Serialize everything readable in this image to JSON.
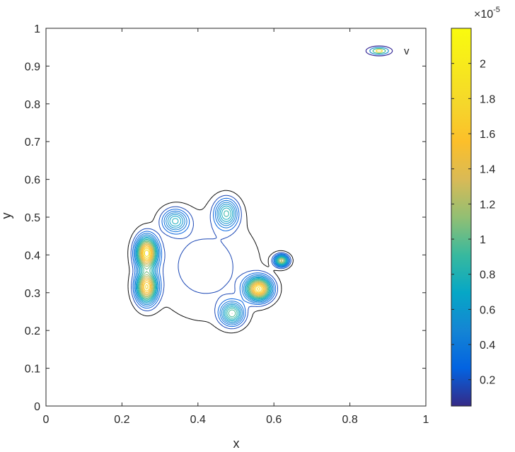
{
  "chart_data": {
    "type": "contour",
    "title": "",
    "xlabel": "x",
    "ylabel": "y",
    "xlim": [
      0,
      1
    ],
    "ylim": [
      0,
      1
    ],
    "x_ticks": [
      "0",
      "0.2",
      "0.4",
      "0.6",
      "0.8",
      "1"
    ],
    "y_ticks": [
      "0",
      "0.1",
      "0.2",
      "0.3",
      "0.4",
      "0.5",
      "0.6",
      "0.7",
      "0.8",
      "0.9",
      "1"
    ],
    "legend": {
      "entries": [
        "v"
      ],
      "placement": "top-right"
    },
    "grid": false,
    "colorbar": {
      "colormap": "parula",
      "range": [
        0.05,
        2.2
      ],
      "exponent_label": "×10",
      "exponent_power": "-5",
      "ticks": [
        "0.2",
        "0.4",
        "0.6",
        "0.8",
        "1",
        "1.2",
        "1.4",
        "1.6",
        "1.8",
        "2"
      ],
      "tick_values": [
        0.2,
        0.4,
        0.6,
        0.8,
        1.0,
        1.2,
        1.4,
        1.6,
        1.8,
        2.0
      ]
    },
    "series": [
      {
        "name": "v",
        "peaks": [
          {
            "x": 0.265,
            "y": 0.405,
            "sx": 0.018,
            "sy": 0.028,
            "amp": 1.9
          },
          {
            "x": 0.265,
            "y": 0.315,
            "sx": 0.018,
            "sy": 0.028,
            "amp": 1.75
          },
          {
            "x": 0.34,
            "y": 0.49,
            "sx": 0.022,
            "sy": 0.02,
            "amp": 0.75
          },
          {
            "x": 0.475,
            "y": 0.51,
            "sx": 0.02,
            "sy": 0.025,
            "amp": 0.85
          },
          {
            "x": 0.56,
            "y": 0.31,
            "sx": 0.022,
            "sy": 0.02,
            "amp": 1.85
          },
          {
            "x": 0.49,
            "y": 0.245,
            "sx": 0.02,
            "sy": 0.02,
            "amp": 1.0
          },
          {
            "x": 0.62,
            "y": 0.385,
            "sx": 0.012,
            "sy": 0.01,
            "amp": 1.3
          },
          {
            "x": 0.42,
            "y": 0.37,
            "sx": 0.09,
            "sy": 0.09,
            "amp": 0.22
          }
        ]
      }
    ]
  }
}
